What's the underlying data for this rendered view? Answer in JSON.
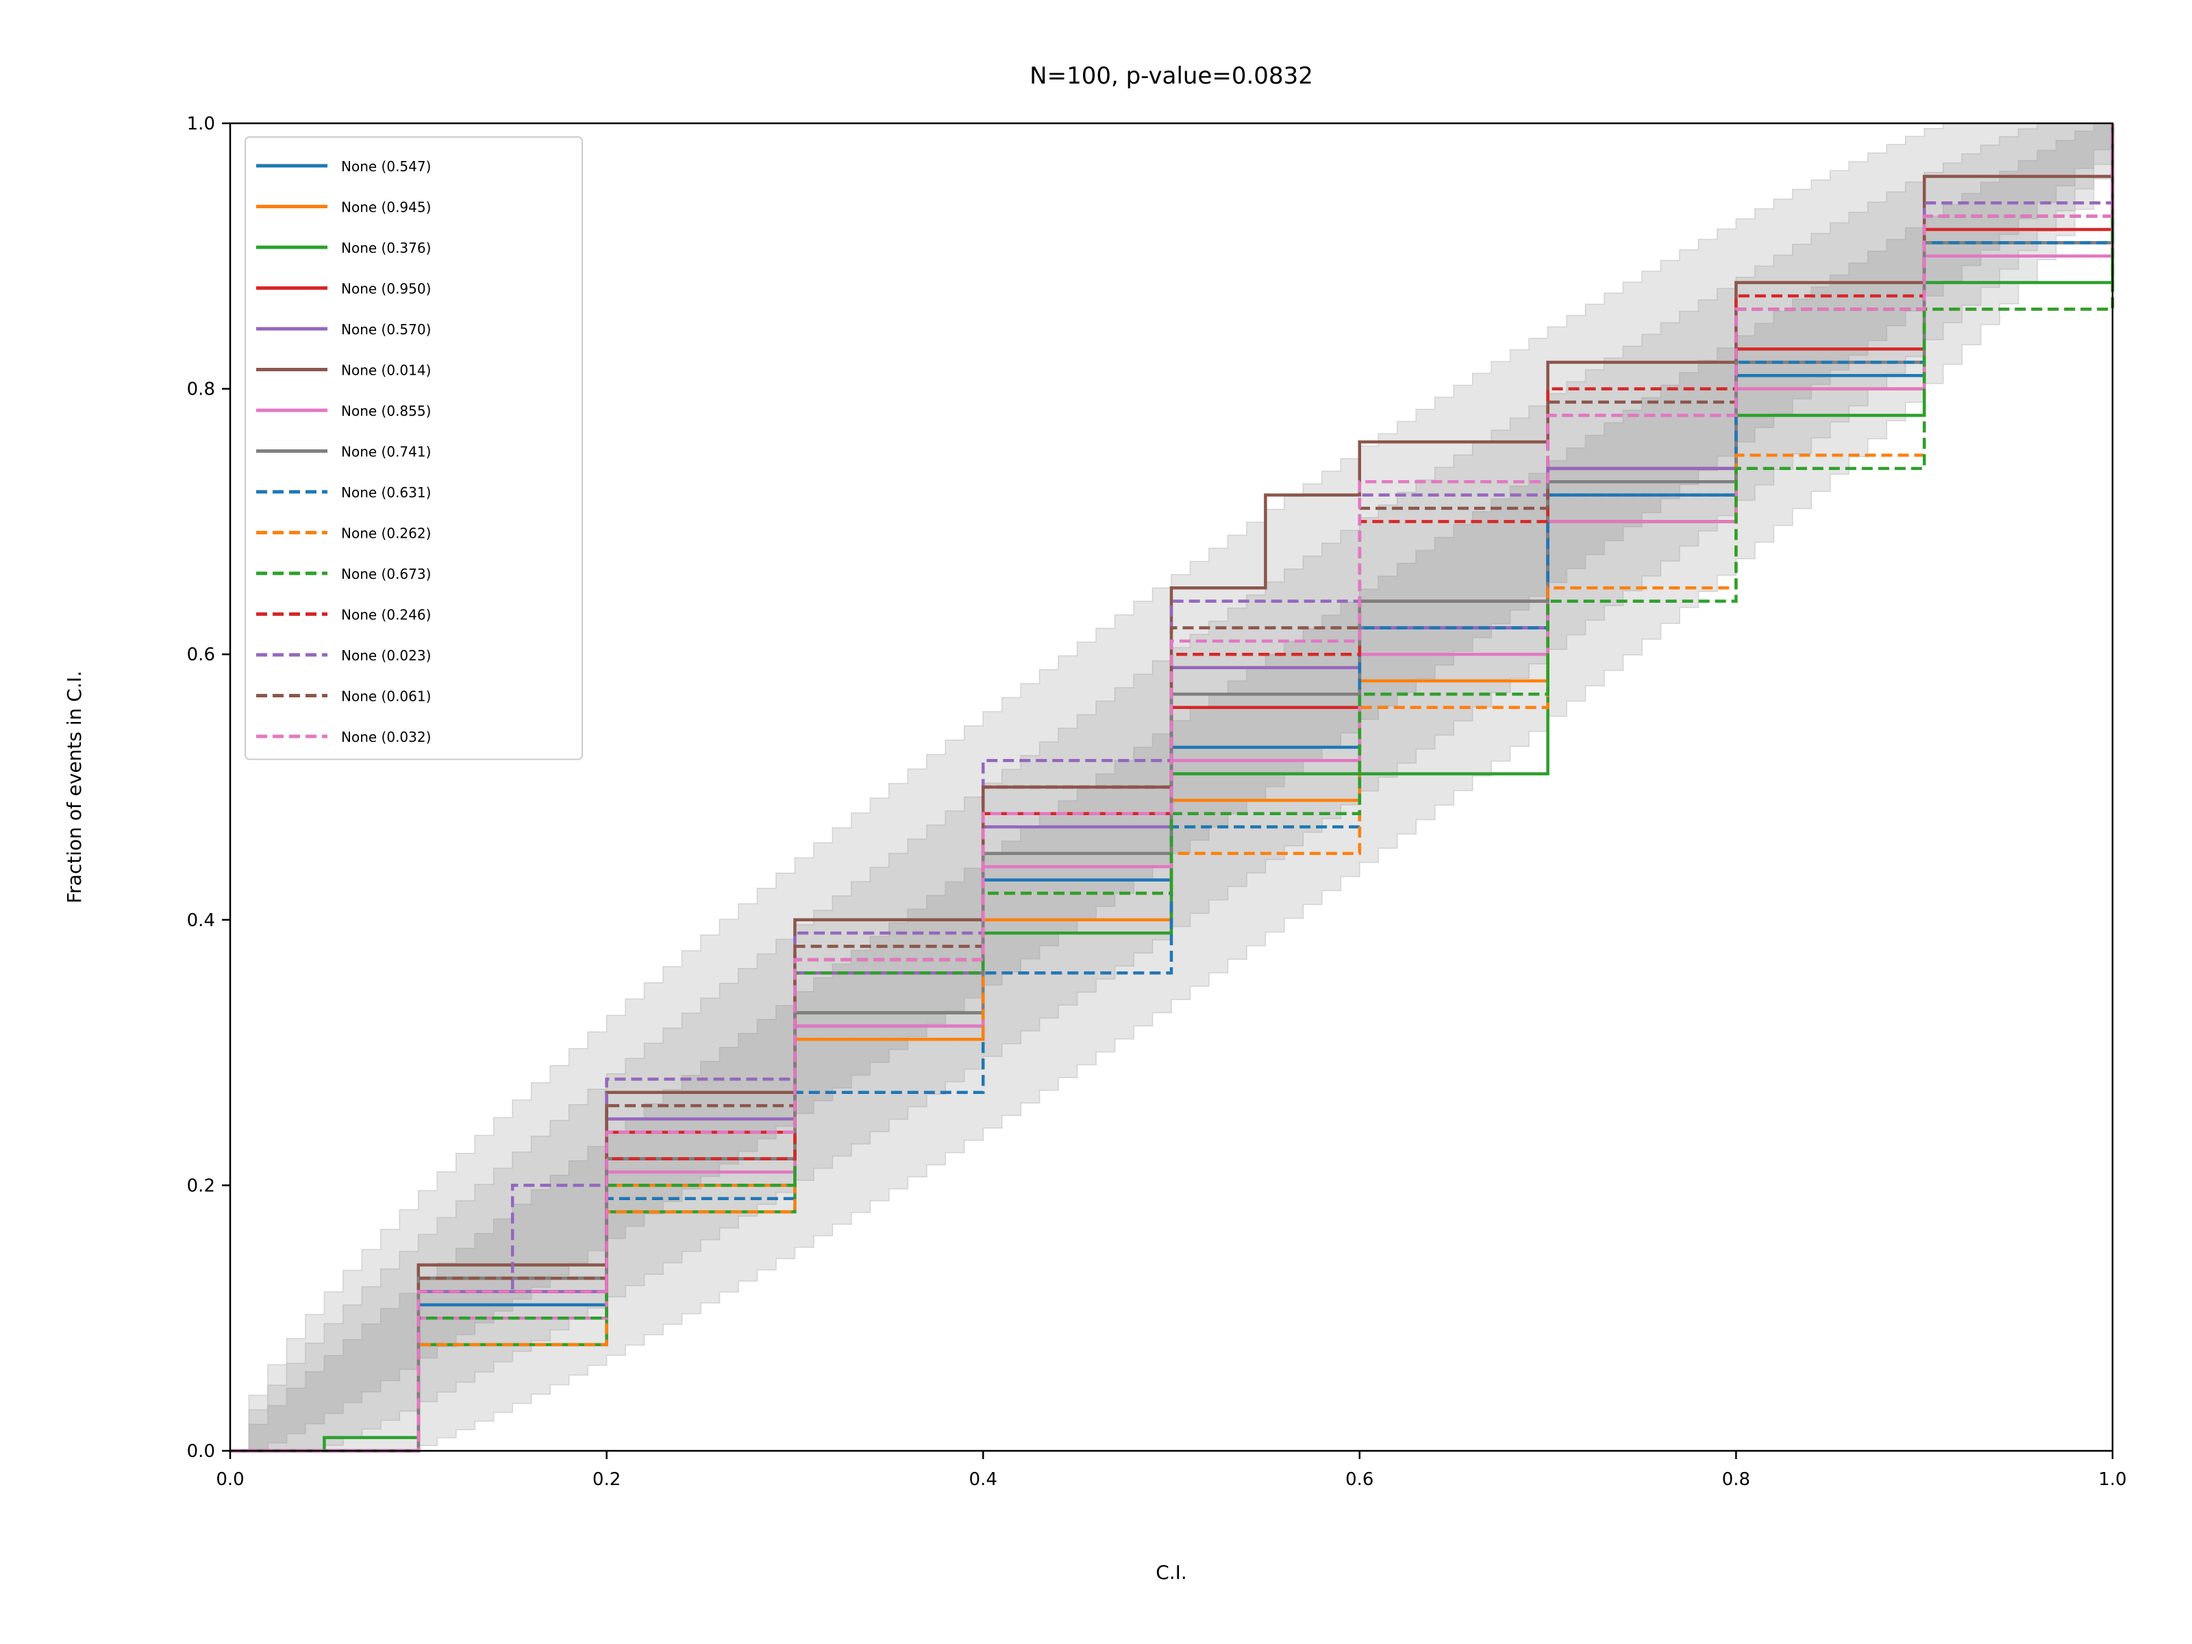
{
  "chart_data": {
    "type": "line",
    "title": "N=100, p-value=0.0832",
    "xlabel": "C.I.",
    "ylabel": "Fraction of events in C.I.",
    "xlim": [
      0.0,
      1.0
    ],
    "ylim": [
      0.0,
      1.0
    ],
    "xticks": [
      "0.0",
      "0.2",
      "0.4",
      "0.6",
      "0.8",
      "1.0"
    ],
    "yticks": [
      "0.0",
      "0.2",
      "0.4",
      "0.6",
      "0.8",
      "1.0"
    ],
    "grid": false,
    "legend_position": "upper-left",
    "series": [
      {
        "name": "None (0.547)",
        "color": "#1f77b4",
        "dash": "solid",
        "x": [
          0,
          0.1,
          0.2,
          0.3,
          0.4,
          0.5,
          0.6,
          0.7,
          0.8,
          0.9,
          1
        ],
        "y": [
          0,
          0.11,
          0.22,
          0.32,
          0.43,
          0.53,
          0.62,
          0.72,
          0.81,
          0.91,
          1
        ]
      },
      {
        "name": "None (0.945)",
        "color": "#ff7f0e",
        "dash": "solid",
        "x": [
          0,
          0.1,
          0.2,
          0.3,
          0.4,
          0.5,
          0.6,
          0.7,
          0.8,
          0.9,
          1
        ],
        "y": [
          0,
          0.1,
          0.2,
          0.31,
          0.4,
          0.49,
          0.58,
          0.7,
          0.8,
          0.9,
          1
        ]
      },
      {
        "name": "None (0.376)",
        "color": "#2ca02c",
        "dash": "solid",
        "x": [
          0,
          0.05,
          0.1,
          0.2,
          0.3,
          0.4,
          0.5,
          0.6,
          0.7,
          0.8,
          0.9,
          1
        ],
        "y": [
          0,
          0.01,
          0.08,
          0.18,
          0.33,
          0.39,
          0.51,
          0.51,
          0.7,
          0.78,
          0.88,
          1
        ]
      },
      {
        "name": "None (0.950)",
        "color": "#d62728",
        "dash": "solid",
        "x": [
          0,
          0.1,
          0.2,
          0.3,
          0.4,
          0.5,
          0.6,
          0.7,
          0.8,
          0.9,
          1
        ],
        "y": [
          0,
          0.13,
          0.24,
          0.36,
          0.48,
          0.56,
          0.64,
          0.74,
          0.83,
          0.92,
          1
        ]
      },
      {
        "name": "None (0.570)",
        "color": "#9467bd",
        "dash": "solid",
        "x": [
          0,
          0.1,
          0.2,
          0.3,
          0.4,
          0.5,
          0.6,
          0.7,
          0.8,
          0.9,
          1
        ],
        "y": [
          0,
          0.12,
          0.25,
          0.36,
          0.47,
          0.59,
          0.62,
          0.74,
          0.82,
          0.9,
          1
        ]
      },
      {
        "name": "None (0.014)",
        "color": "#8c564b",
        "dash": "solid",
        "x": [
          0,
          0.1,
          0.2,
          0.3,
          0.4,
          0.5,
          0.55,
          0.6,
          0.7,
          0.8,
          0.9,
          1
        ],
        "y": [
          0,
          0.14,
          0.27,
          0.4,
          0.5,
          0.65,
          0.72,
          0.76,
          0.82,
          0.88,
          0.96,
          1
        ]
      },
      {
        "name": "None (0.855)",
        "color": "#e377c2",
        "dash": "solid",
        "x": [
          0,
          0.1,
          0.2,
          0.3,
          0.4,
          0.5,
          0.6,
          0.7,
          0.8,
          0.9,
          1
        ],
        "y": [
          0,
          0.1,
          0.21,
          0.32,
          0.44,
          0.52,
          0.6,
          0.7,
          0.8,
          0.9,
          1
        ]
      },
      {
        "name": "None (0.741)",
        "color": "#7f7f7f",
        "dash": "solid",
        "x": [
          0,
          0.1,
          0.2,
          0.3,
          0.4,
          0.5,
          0.6,
          0.7,
          0.8,
          0.9,
          1
        ],
        "y": [
          0,
          0.13,
          0.22,
          0.33,
          0.45,
          0.57,
          0.64,
          0.73,
          0.82,
          0.91,
          1
        ]
      },
      {
        "name": "None (0.631)",
        "color": "#1f77b4",
        "dash": "dashed",
        "x": [
          0,
          0.1,
          0.2,
          0.3,
          0.4,
          0.5,
          0.6,
          0.7,
          0.8,
          0.9,
          1
        ],
        "y": [
          0,
          0.1,
          0.19,
          0.27,
          0.36,
          0.47,
          0.62,
          0.72,
          0.82,
          0.91,
          1
        ]
      },
      {
        "name": "None (0.262)",
        "color": "#ff7f0e",
        "dash": "dashed",
        "x": [
          0,
          0.1,
          0.2,
          0.3,
          0.4,
          0.5,
          0.6,
          0.7,
          0.8,
          0.9,
          1
        ],
        "y": [
          0,
          0.08,
          0.18,
          0.31,
          0.42,
          0.45,
          0.56,
          0.65,
          0.75,
          0.86,
          1
        ]
      },
      {
        "name": "None (0.673)",
        "color": "#2ca02c",
        "dash": "dashed",
        "x": [
          0,
          0.1,
          0.2,
          0.3,
          0.4,
          0.5,
          0.6,
          0.7,
          0.8,
          0.9,
          1
        ],
        "y": [
          0,
          0.1,
          0.2,
          0.36,
          0.42,
          0.48,
          0.57,
          0.64,
          0.74,
          0.86,
          1
        ]
      },
      {
        "name": "None (0.246)",
        "color": "#d62728",
        "dash": "dashed",
        "x": [
          0,
          0.1,
          0.2,
          0.3,
          0.4,
          0.5,
          0.6,
          0.7,
          0.8,
          0.9,
          1
        ],
        "y": [
          0,
          0.12,
          0.22,
          0.37,
          0.5,
          0.6,
          0.7,
          0.8,
          0.87,
          0.93,
          1
        ]
      },
      {
        "name": "None (0.023)",
        "color": "#9467bd",
        "dash": "dashed",
        "x": [
          0,
          0.1,
          0.15,
          0.2,
          0.3,
          0.4,
          0.5,
          0.6,
          0.7,
          0.8,
          0.9,
          1
        ],
        "y": [
          0,
          0.12,
          0.2,
          0.28,
          0.39,
          0.52,
          0.64,
          0.72,
          0.78,
          0.86,
          0.94,
          1
        ]
      },
      {
        "name": "None (0.061)",
        "color": "#8c564b",
        "dash": "dashed",
        "x": [
          0,
          0.1,
          0.2,
          0.3,
          0.4,
          0.5,
          0.6,
          0.7,
          0.8,
          0.9,
          1
        ],
        "y": [
          0,
          0.13,
          0.26,
          0.38,
          0.5,
          0.62,
          0.71,
          0.79,
          0.86,
          0.93,
          1
        ]
      },
      {
        "name": "None (0.032)",
        "color": "#e377c2",
        "dash": "dashed",
        "x": [
          0,
          0.1,
          0.2,
          0.3,
          0.4,
          0.5,
          0.6,
          0.7,
          0.8,
          0.9,
          1
        ],
        "y": [
          0,
          0.12,
          0.24,
          0.37,
          0.48,
          0.61,
          0.73,
          0.78,
          0.86,
          0.93,
          1
        ]
      }
    ]
  }
}
